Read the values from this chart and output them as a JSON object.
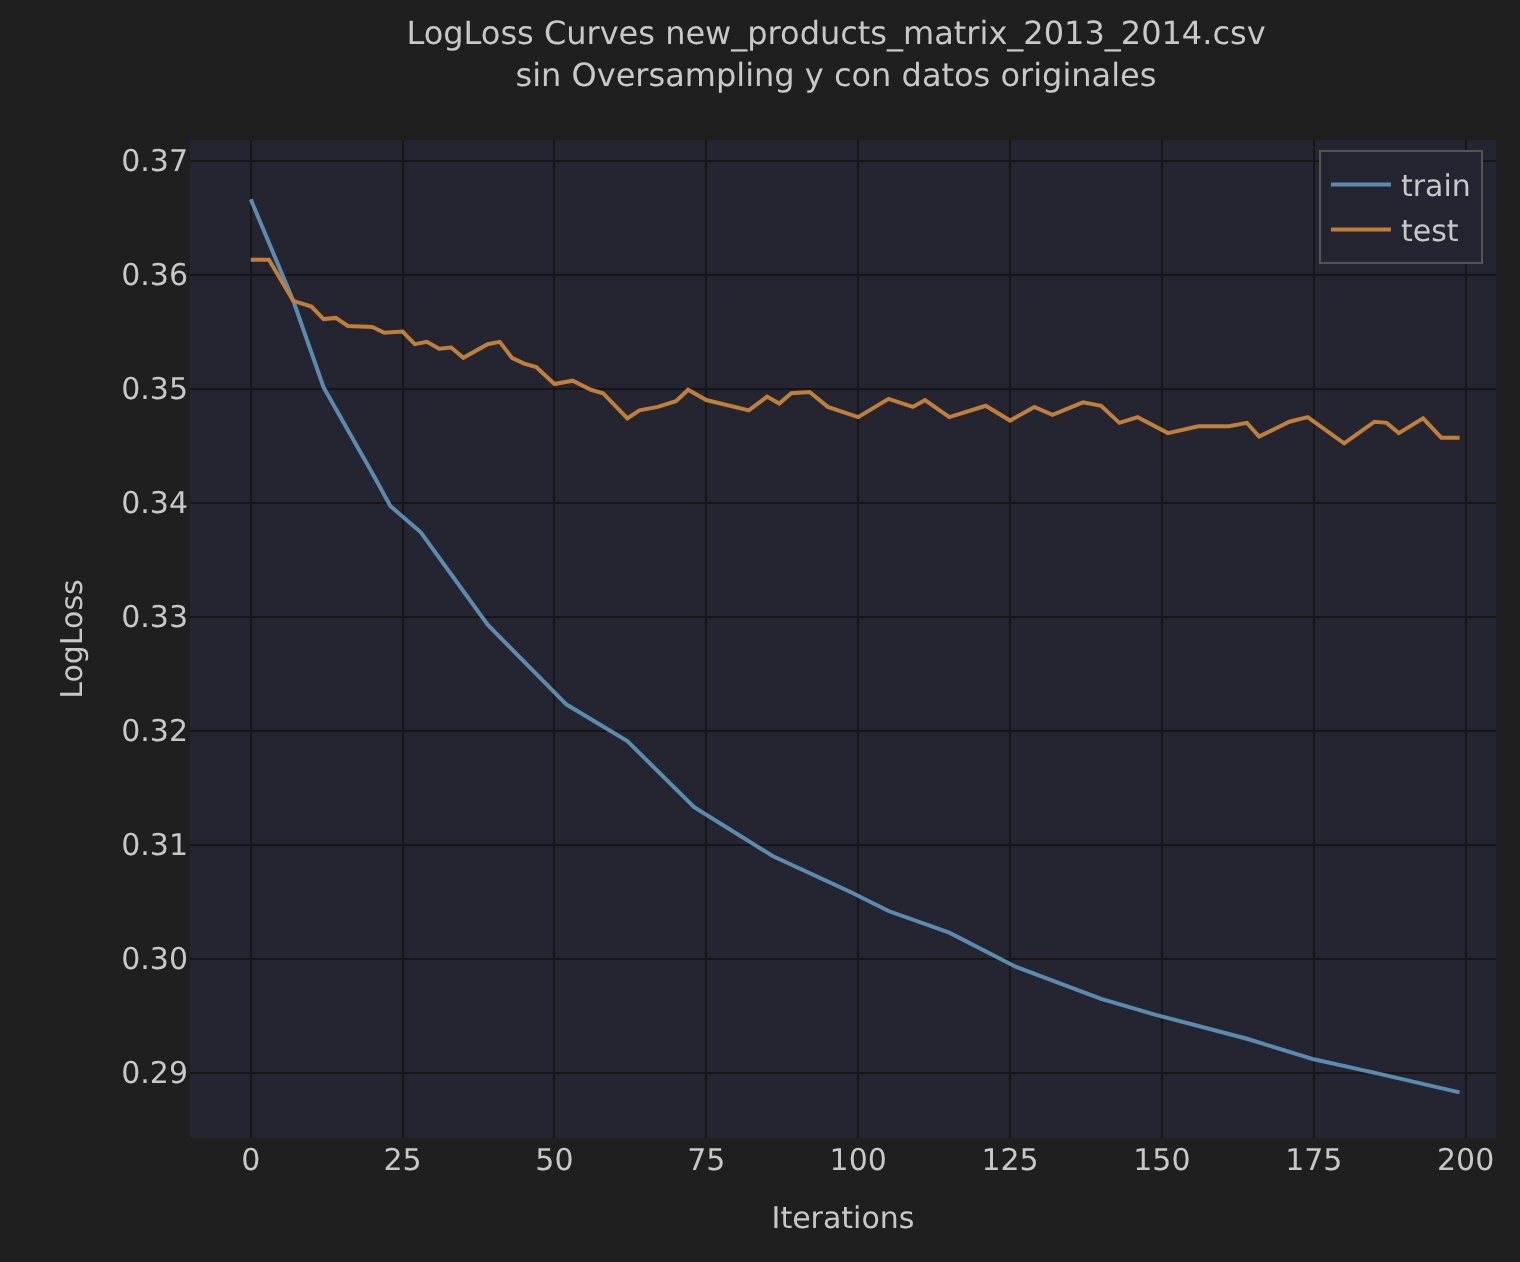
{
  "chart_data": {
    "type": "line",
    "title": "LogLoss Curves new_products_matrix_2013_2014.csv",
    "subtitle": "sin Oversampling y con datos originales",
    "xlabel": "Iterations",
    "ylabel": "LogLoss",
    "xlim": [
      -10,
      205
    ],
    "xticks": [
      0,
      25,
      50,
      75,
      100,
      125,
      150,
      175,
      200
    ],
    "ylim": [
      0.2843,
      0.3718
    ],
    "yticks": [
      {
        "value": 0.29,
        "label": "0.29"
      },
      {
        "value": 0.3,
        "label": "0.30"
      },
      {
        "value": 0.31,
        "label": "0.31"
      },
      {
        "value": 0.32,
        "label": "0.32"
      },
      {
        "value": 0.33,
        "label": "0.33"
      },
      {
        "value": 0.34,
        "label": "0.34"
      },
      {
        "value": 0.35,
        "label": "0.35"
      },
      {
        "value": 0.36,
        "label": "0.36"
      },
      {
        "value": 0.37,
        "label": "0.37"
      }
    ],
    "grid": true,
    "legend": "top right",
    "line_style": "solid",
    "marker": "none",
    "series": [
      {
        "name": "train",
        "color": "#5b8cb0",
        "x": [
          0,
          7,
          12,
          20,
          23,
          28,
          39,
          52,
          62,
          73,
          86,
          99,
          105,
          115,
          126,
          140,
          149,
          164,
          175,
          186,
          199
        ],
        "values": [
          0.3666,
          0.3577,
          0.3501,
          0.3426,
          0.3397,
          0.3374,
          0.3293,
          0.3223,
          0.3191,
          0.3133,
          0.309,
          0.3058,
          0.3042,
          0.3023,
          0.2993,
          0.2965,
          0.2951,
          0.293,
          0.2912,
          0.2899,
          0.2883
        ]
      },
      {
        "name": "test",
        "color": "#c07f3a",
        "x": [
          0,
          3,
          7,
          10,
          12,
          14,
          16,
          20,
          22,
          25,
          27,
          29,
          31,
          33,
          35,
          39,
          41,
          43,
          45,
          47,
          50,
          53,
          56,
          58,
          62,
          64,
          67,
          70,
          72,
          75,
          82,
          85,
          87,
          89,
          92,
          95,
          100,
          105,
          109,
          111,
          115,
          121,
          125,
          129,
          132,
          137,
          140,
          143,
          146,
          151,
          156,
          161,
          164,
          166,
          171,
          174,
          180,
          185,
          187,
          189,
          193,
          196,
          199
        ],
        "values": [
          0.3613,
          0.3613,
          0.3577,
          0.3572,
          0.3561,
          0.3562,
          0.3555,
          0.3554,
          0.3549,
          0.355,
          0.3539,
          0.3541,
          0.3535,
          0.3536,
          0.3527,
          0.3539,
          0.3541,
          0.3527,
          0.3522,
          0.3519,
          0.3504,
          0.3507,
          0.3499,
          0.3496,
          0.3474,
          0.3481,
          0.3484,
          0.3489,
          0.3499,
          0.349,
          0.3481,
          0.3493,
          0.3487,
          0.3496,
          0.3497,
          0.3484,
          0.3475,
          0.3491,
          0.3484,
          0.349,
          0.3475,
          0.3485,
          0.3472,
          0.3484,
          0.3477,
          0.3488,
          0.3485,
          0.347,
          0.3475,
          0.3461,
          0.3467,
          0.3467,
          0.347,
          0.3458,
          0.3471,
          0.3475,
          0.3452,
          0.3471,
          0.347,
          0.3461,
          0.3474,
          0.3457,
          0.3457
        ]
      }
    ]
  }
}
